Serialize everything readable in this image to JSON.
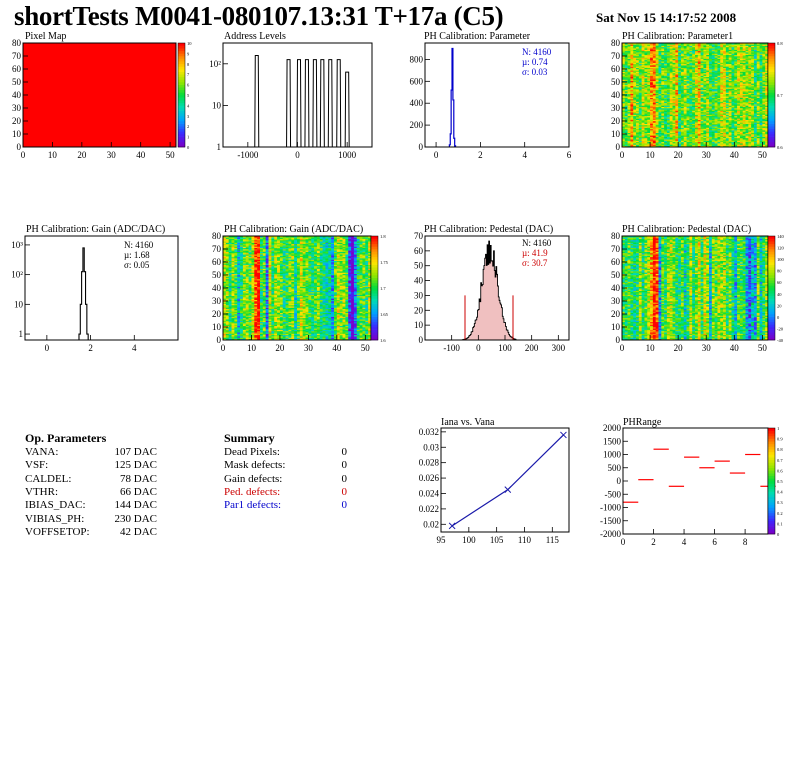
{
  "header": {
    "title": "shortTests M0041-080107.13:31 T+17a (C5)",
    "date": "Sat Nov 15 14:17:52 2008"
  },
  "colors": {
    "hist_line": "#000000",
    "stats_blue": "#0000cc",
    "stats_red": "#cc0000",
    "fill_red": "#ff0000",
    "graph_blue": "#1a1aaa"
  },
  "panels": {
    "pixel_map": {
      "title": "Pixel Map",
      "xticks": [
        "0",
        "10",
        "20",
        "30",
        "40",
        "50"
      ],
      "yticks": [
        "0",
        "10",
        "20",
        "30",
        "40",
        "50",
        "60",
        "70",
        "80"
      ],
      "zticks": [
        "0",
        "1",
        "2",
        "3",
        "4",
        "5",
        "6",
        "7",
        "8",
        "9",
        "10"
      ]
    },
    "address_levels": {
      "title": "Address Levels",
      "xticks": [
        "-1000",
        "0",
        "1000"
      ],
      "yticks": [
        "1",
        "10",
        "10²"
      ]
    },
    "ph_param": {
      "title": "PH Calibration: Parameter",
      "xticks": [
        "0",
        "2",
        "4",
        "6"
      ],
      "yticks": [
        "0",
        "200",
        "400",
        "600",
        "800"
      ],
      "stats": [
        "N: 4160",
        "µ: 0.74",
        "σ: 0.03"
      ]
    },
    "ph_param1": {
      "title": "PH Calibration: Parameter1",
      "xticks": [
        "0",
        "10",
        "20",
        "30",
        "40",
        "50"
      ],
      "yticks": [
        "0",
        "10",
        "20",
        "30",
        "40",
        "50",
        "60",
        "70",
        "80"
      ],
      "zticks": [
        "0.6",
        "0.7",
        "0.8"
      ]
    },
    "gain_1d": {
      "title": "PH Calibration: Gain (ADC/DAC)",
      "xticks": [
        "0",
        "2",
        "4"
      ],
      "yticks": [
        "1",
        "10",
        "10²",
        "10³"
      ],
      "stats": [
        "N: 4160",
        "µ: 1.68",
        "σ: 0.05"
      ]
    },
    "gain_2d": {
      "title": "PH Calibration: Gain (ADC/DAC)",
      "xticks": [
        "0",
        "10",
        "20",
        "30",
        "40",
        "50"
      ],
      "yticks": [
        "0",
        "10",
        "20",
        "30",
        "40",
        "50",
        "60",
        "70",
        "80"
      ],
      "zticks": [
        "1.6",
        "1.65",
        "1.7",
        "1.75",
        "1.8"
      ]
    },
    "pedestal_1d": {
      "title": "PH Calibration: Pedestal (DAC)",
      "xticks": [
        "-100",
        "0",
        "100",
        "200",
        "300"
      ],
      "yticks": [
        "0",
        "10",
        "20",
        "30",
        "40",
        "50",
        "60",
        "70"
      ],
      "stats": [
        "N: 4160",
        "µ: 41.9",
        "σ: 30.7"
      ]
    },
    "pedestal_2d": {
      "title": "PH Calibration: Pedestal (DAC)",
      "xticks": [
        "0",
        "10",
        "20",
        "30",
        "40",
        "50"
      ],
      "yticks": [
        "0",
        "10",
        "20",
        "30",
        "40",
        "50",
        "60",
        "70",
        "80"
      ],
      "zticks": [
        "-40",
        "-20",
        "0",
        "20",
        "40",
        "60",
        "80",
        "100",
        "120",
        "140"
      ]
    },
    "iana_vana": {
      "title": "Iana vs. Vana",
      "xticks": [
        "95",
        "100",
        "105",
        "110",
        "115"
      ],
      "yticks": [
        "0.02",
        "0.022",
        "0.024",
        "0.026",
        "0.028",
        "0.03",
        "0.032"
      ]
    },
    "phrange": {
      "title": "PHRange",
      "xticks": [
        "0",
        "2",
        "4",
        "6",
        "8"
      ],
      "yticks": [
        "-2000",
        "-1500",
        "-1000",
        "-500",
        "0",
        "500",
        "1000",
        "1500",
        "2000"
      ],
      "zticks": [
        "0",
        "0.1",
        "0.2",
        "0.3",
        "0.4",
        "0.5",
        "0.6",
        "0.7",
        "0.8",
        "0.9",
        "1"
      ]
    }
  },
  "op_parameters": {
    "heading": "Op. Parameters",
    "rows": [
      {
        "name": "VANA:",
        "value": "107 DAC"
      },
      {
        "name": "VSF:",
        "value": "125 DAC"
      },
      {
        "name": "CALDEL:",
        "value": "78 DAC"
      },
      {
        "name": "VTHR:",
        "value": "66 DAC"
      },
      {
        "name": "IBIAS_DAC:",
        "value": "144 DAC"
      },
      {
        "name": "VIBIAS_PH:",
        "value": "230 DAC"
      },
      {
        "name": "VOFFSETOP:",
        "value": "42 DAC"
      }
    ]
  },
  "summary": {
    "heading": "Summary",
    "rows": [
      {
        "name": "Dead Pixels:",
        "value": "0",
        "color": "#000000"
      },
      {
        "name": "Mask defects:",
        "value": "0",
        "color": "#000000"
      },
      {
        "name": "Gain defects:",
        "value": "0",
        "color": "#000000"
      },
      {
        "name": "Ped. defects:",
        "value": "0",
        "color": "#cc0000"
      },
      {
        "name": "Par1 defects:",
        "value": "0",
        "color": "#0000cc"
      }
    ]
  },
  "chart_data": [
    {
      "type": "heatmap",
      "title": "Pixel Map",
      "x_range": [
        0,
        52
      ],
      "y_range": [
        0,
        80
      ],
      "z_range": [
        0,
        10
      ],
      "value_everywhere": 10
    },
    {
      "type": "bar",
      "title": "Address Levels",
      "y_scale": "log",
      "xlim": [
        -1500,
        1500
      ],
      "peaks_x": [
        -820,
        -180,
        30,
        190,
        350,
        500,
        660,
        830,
        1000
      ],
      "peaks_log10": [
        2.2,
        2.1,
        2.1,
        2.1,
        2.1,
        2.1,
        2.1,
        2.1,
        1.8
      ]
    },
    {
      "type": "bar",
      "title": "PH Calibration: Parameter",
      "xlim": [
        -0.5,
        6
      ],
      "ylim": [
        0,
        950
      ],
      "x": [
        0.62,
        0.66,
        0.7,
        0.74,
        0.78,
        0.82,
        0.86
      ],
      "values": [
        20,
        120,
        520,
        900,
        430,
        80,
        10
      ]
    },
    {
      "type": "heatmap",
      "title": "PH Calibration: Parameter1",
      "x_range": [
        0,
        52
      ],
      "y_range": [
        0,
        80
      ],
      "z_range": [
        0.6,
        0.85
      ]
    },
    {
      "type": "bar",
      "title": "PH Calibration: Gain (ADC/DAC)",
      "y_scale": "log",
      "xlim": [
        -1,
        6
      ],
      "ylim_log10": [
        -0.2,
        3.3
      ],
      "x": [
        1.5,
        1.56,
        1.62,
        1.68,
        1.74,
        1.8,
        1.86
      ],
      "log10_values": [
        0,
        1.0,
        2.1,
        2.9,
        2.1,
        1.0,
        0
      ]
    },
    {
      "type": "heatmap",
      "title": "PH Calibration: Gain (ADC/DAC)",
      "x_range": [
        0,
        52
      ],
      "y_range": [
        0,
        80
      ],
      "z_range": [
        1.55,
        1.82
      ]
    },
    {
      "type": "bar",
      "title": "PH Calibration: Pedestal (DAC)",
      "xlim": [
        -200,
        340
      ],
      "ylim": [
        0,
        70
      ],
      "mean": 41.9,
      "sigma": 30.7,
      "peak": 60,
      "cut_lines_x": [
        -50,
        130
      ],
      "cut_height": 30
    },
    {
      "type": "heatmap",
      "title": "PH Calibration: Pedestal (DAC)",
      "x_range": [
        0,
        52
      ],
      "y_range": [
        0,
        80
      ],
      "z_range": [
        -50,
        150
      ]
    },
    {
      "type": "line",
      "title": "Iana vs. Vana",
      "xlim": [
        95,
        118
      ],
      "ylim": [
        0.019,
        0.0325
      ],
      "x": [
        97,
        107,
        117
      ],
      "y": [
        0.0198,
        0.0245,
        0.0316
      ]
    },
    {
      "type": "scatter",
      "title": "PHRange",
      "xlim": [
        0,
        9.5
      ],
      "ylim": [
        -2000,
        2000
      ],
      "x": [
        0,
        1,
        2,
        3,
        4,
        5,
        6,
        7,
        8,
        9
      ],
      "y": [
        -800,
        50,
        1200,
        -200,
        900,
        500,
        750,
        300,
        1000,
        -200
      ]
    }
  ]
}
